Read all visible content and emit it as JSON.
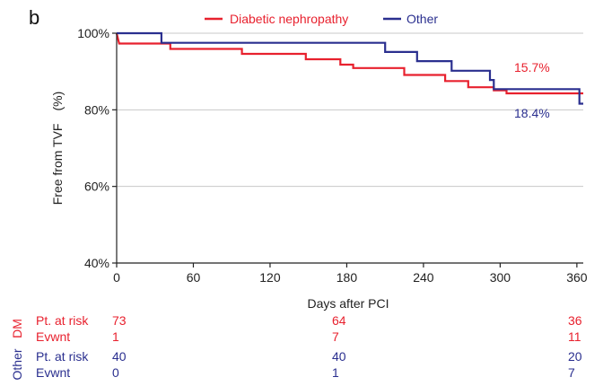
{
  "panel_label": "b",
  "colors": {
    "dm": "#e8212e",
    "other": "#2a2f8f",
    "grid": "#c8c8c8",
    "axis": "#222222"
  },
  "chart_data": {
    "type": "line",
    "title": "",
    "xlabel": "Days after PCI",
    "ylabel": "Free from TVF　(%)",
    "xlim": [
      0,
      365
    ],
    "ylim": [
      40,
      100
    ],
    "xticks": [
      0,
      60,
      120,
      180,
      240,
      300,
      360
    ],
    "xtick_labels": [
      "0",
      "60",
      "120",
      "180",
      "240",
      "300",
      "360"
    ],
    "yticks": [
      40,
      60,
      80,
      100
    ],
    "ytick_labels": [
      "40%",
      "60%",
      "80%",
      "100%"
    ],
    "grid": true,
    "legend": "top-center",
    "series": [
      {
        "name": "Diabetic nephropathy",
        "color": "#e8212e",
        "step": true,
        "points": [
          [
            0,
            100
          ],
          [
            2,
            97.3
          ],
          [
            42,
            97.3
          ],
          [
            42,
            95.9
          ],
          [
            98,
            95.9
          ],
          [
            98,
            94.6
          ],
          [
            148,
            94.6
          ],
          [
            148,
            93.2
          ],
          [
            175,
            93.2
          ],
          [
            175,
            91.8
          ],
          [
            185,
            91.8
          ],
          [
            185,
            90.9
          ],
          [
            225,
            90.9
          ],
          [
            225,
            89.1
          ],
          [
            257,
            89.1
          ],
          [
            257,
            87.5
          ],
          [
            275,
            87.5
          ],
          [
            275,
            85.9
          ],
          [
            295,
            85.9
          ],
          [
            295,
            85.1
          ],
          [
            305,
            85.1
          ],
          [
            305,
            84.3
          ],
          [
            365,
            84.3
          ]
        ],
        "annotation": "15.7%"
      },
      {
        "name": "Other",
        "color": "#2a2f8f",
        "step": true,
        "points": [
          [
            0,
            100
          ],
          [
            35,
            100
          ],
          [
            35,
            97.5
          ],
          [
            210,
            97.5
          ],
          [
            210,
            95.1
          ],
          [
            235,
            95.1
          ],
          [
            235,
            92.7
          ],
          [
            262,
            92.7
          ],
          [
            262,
            90.2
          ],
          [
            292,
            90.2
          ],
          [
            292,
            87.8
          ],
          [
            295,
            87.8
          ],
          [
            295,
            85.4
          ],
          [
            362,
            85.4
          ],
          [
            362,
            81.6
          ],
          [
            365,
            81.6
          ]
        ],
        "annotation": "18.4%"
      }
    ]
  },
  "risk_table": {
    "groups": [
      {
        "label": "DM",
        "color": "#e8212e",
        "rows": [
          {
            "label": "Pt. at risk",
            "values": [
              "73",
              "64",
              "36"
            ]
          },
          {
            "label": "Evwnt",
            "values": [
              "1",
              "7",
              "11"
            ]
          }
        ]
      },
      {
        "label": "Other",
        "color": "#2a2f8f",
        "rows": [
          {
            "label": "Pt. at risk",
            "values": [
              "40",
              "40",
              "20"
            ]
          },
          {
            "label": "Evwnt",
            "values": [
              "0",
              "1",
              "7"
            ]
          }
        ]
      }
    ],
    "x_positions": [
      0,
      180,
      365
    ]
  }
}
